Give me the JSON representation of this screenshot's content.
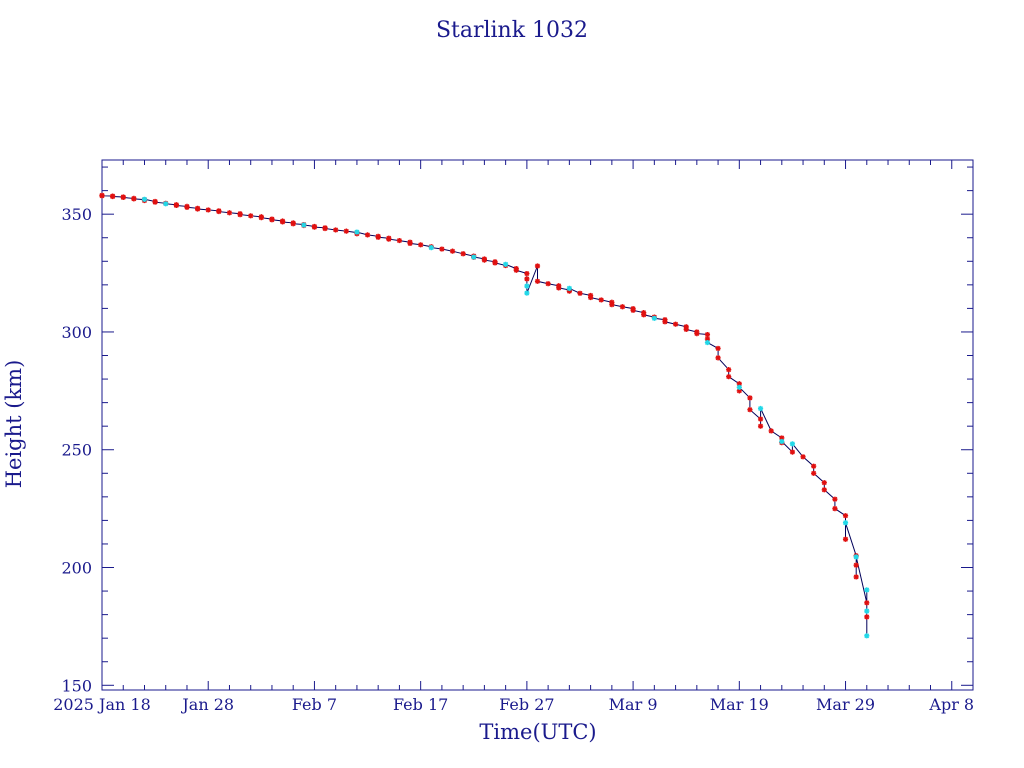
{
  "chart_data": {
    "type": "scatter",
    "title": "Starlink 1032",
    "xlabel": "Time(UTC)",
    "ylabel": "Height (km)",
    "x_tick_labels": [
      "2025 Jan 18",
      "Jan 28",
      "Feb  7",
      "Feb 17",
      "Feb 27",
      "Mar  9",
      "Mar 19",
      "Mar 29",
      "Apr  8"
    ],
    "x_tick_dates": [
      "2025-01-18",
      "2025-01-28",
      "2025-02-07",
      "2025-02-17",
      "2025-02-27",
      "2025-03-09",
      "2025-03-19",
      "2025-03-29",
      "2025-04-08"
    ],
    "xlim": [
      "2025-01-18",
      "2025-04-10"
    ],
    "y_tick_labels": [
      "150",
      "200",
      "250",
      "300",
      "350"
    ],
    "y_ticks": [
      150,
      200,
      250,
      300,
      350
    ],
    "ylim": [
      148,
      373
    ],
    "grid": false,
    "colors": {
      "axes": "#1a1a8c",
      "line": "#00005a",
      "marker_red": "#e01010",
      "marker_cyan": "#22d8e8"
    },
    "series": [
      {
        "marker": "red-star",
        "points": [
          [
            "2025-01-18",
            358
          ],
          [
            "2025-01-18",
            357.8
          ],
          [
            "2025-01-19",
            357.7
          ],
          [
            "2025-01-19",
            357.5
          ],
          [
            "2025-01-20",
            357.3
          ],
          [
            "2025-01-20",
            357.1
          ],
          [
            "2025-01-21",
            356.7
          ],
          [
            "2025-01-21",
            356.5
          ],
          [
            "2025-01-22",
            356.2
          ],
          [
            "2025-01-22",
            355.8
          ],
          [
            "2025-01-23",
            355.4
          ],
          [
            "2025-01-23",
            355.1
          ],
          [
            "2025-01-24",
            354.6
          ],
          [
            "2025-01-25",
            354
          ],
          [
            "2025-01-25",
            353.7
          ],
          [
            "2025-01-26",
            353.3
          ],
          [
            "2025-01-26",
            352.9
          ],
          [
            "2025-01-27",
            352.5
          ],
          [
            "2025-01-27",
            352.2
          ],
          [
            "2025-01-28",
            351.8
          ],
          [
            "2025-01-29",
            351.4
          ],
          [
            "2025-01-29",
            351.1
          ],
          [
            "2025-01-30",
            350.6
          ],
          [
            "2025-01-31",
            350.2
          ],
          [
            "2025-01-31",
            349.8
          ],
          [
            "2025-02-01",
            349.3
          ],
          [
            "2025-02-02",
            348.9
          ],
          [
            "2025-02-02",
            348.5
          ],
          [
            "2025-02-03",
            347.9
          ],
          [
            "2025-02-03",
            347.6
          ],
          [
            "2025-02-04",
            347.1
          ],
          [
            "2025-02-04",
            346.7
          ],
          [
            "2025-02-05",
            346.3
          ],
          [
            "2025-02-05",
            345.9
          ],
          [
            "2025-02-06",
            345.6
          ],
          [
            "2025-02-06",
            345.2
          ],
          [
            "2025-02-07",
            344.8
          ],
          [
            "2025-02-07",
            344.5
          ],
          [
            "2025-02-08",
            344.2
          ],
          [
            "2025-02-08",
            343.9
          ],
          [
            "2025-02-09",
            343.3
          ],
          [
            "2025-02-10",
            342.8
          ],
          [
            "2025-02-11",
            342.2
          ],
          [
            "2025-02-11",
            341.7
          ],
          [
            "2025-02-12",
            341.2
          ],
          [
            "2025-02-13",
            340.6
          ],
          [
            "2025-02-13",
            340.2
          ],
          [
            "2025-02-14",
            339.8
          ],
          [
            "2025-02-14",
            339.4
          ],
          [
            "2025-02-15",
            338.8
          ],
          [
            "2025-02-16",
            338.1
          ],
          [
            "2025-02-16",
            337.6
          ],
          [
            "2025-02-17",
            337
          ],
          [
            "2025-02-18",
            336.2
          ],
          [
            "2025-02-19",
            335.2
          ],
          [
            "2025-02-20",
            334.3
          ],
          [
            "2025-02-21",
            333.2
          ],
          [
            "2025-02-22",
            332.2
          ],
          [
            "2025-02-22",
            331.7
          ],
          [
            "2025-02-23",
            331
          ],
          [
            "2025-02-23",
            330.5
          ],
          [
            "2025-02-24",
            329.8
          ],
          [
            "2025-02-24",
            329.3
          ],
          [
            "2025-02-25",
            328.2
          ],
          [
            "2025-02-26",
            326.9
          ],
          [
            "2025-02-26",
            326.2
          ],
          [
            "2025-02-27",
            324.8
          ],
          [
            "2025-02-27",
            322.5
          ],
          [
            "2025-02-28",
            328
          ],
          [
            "2025-02-28",
            321.5
          ],
          [
            "2025-03-01",
            320.5
          ],
          [
            "2025-03-02",
            319.6
          ],
          [
            "2025-03-02",
            318.7
          ],
          [
            "2025-03-03",
            317.8
          ],
          [
            "2025-03-03",
            317.3
          ],
          [
            "2025-03-04",
            316.4
          ],
          [
            "2025-03-05",
            315.5
          ],
          [
            "2025-03-05",
            314.6
          ],
          [
            "2025-03-06",
            313.6
          ],
          [
            "2025-03-07",
            312.6
          ],
          [
            "2025-03-07",
            311.6
          ],
          [
            "2025-03-08",
            310.7
          ],
          [
            "2025-03-09",
            309.9
          ],
          [
            "2025-03-09",
            309.2
          ],
          [
            "2025-03-10",
            308.2
          ],
          [
            "2025-03-10",
            307.3
          ],
          [
            "2025-03-11",
            306.3
          ],
          [
            "2025-03-12",
            305.2
          ],
          [
            "2025-03-12",
            304.3
          ],
          [
            "2025-03-13",
            303.3
          ],
          [
            "2025-03-14",
            302.2
          ],
          [
            "2025-03-14",
            301.1
          ],
          [
            "2025-03-15",
            300
          ],
          [
            "2025-03-15",
            299.3
          ],
          [
            "2025-03-16",
            298.9
          ],
          [
            "2025-03-16",
            297
          ],
          [
            "2025-03-17",
            293
          ],
          [
            "2025-03-17",
            289
          ],
          [
            "2025-03-18",
            284
          ],
          [
            "2025-03-18",
            281
          ],
          [
            "2025-03-19",
            278
          ],
          [
            "2025-03-19",
            275
          ],
          [
            "2025-03-20",
            272
          ],
          [
            "2025-03-20",
            267
          ],
          [
            "2025-03-21",
            263
          ],
          [
            "2025-03-21",
            260
          ],
          [
            "2025-03-22",
            258
          ],
          [
            "2025-03-23",
            255
          ],
          [
            "2025-03-23",
            253
          ],
          [
            "2025-03-24",
            249
          ],
          [
            "2025-03-25",
            247
          ],
          [
            "2025-03-26",
            243
          ],
          [
            "2025-03-26",
            240
          ],
          [
            "2025-03-27",
            236
          ],
          [
            "2025-03-27",
            233
          ],
          [
            "2025-03-28",
            229
          ],
          [
            "2025-03-28",
            225
          ],
          [
            "2025-03-29",
            222
          ],
          [
            "2025-03-29",
            212
          ],
          [
            "2025-03-30",
            205
          ],
          [
            "2025-03-30",
            201
          ],
          [
            "2025-03-30",
            196
          ],
          [
            "2025-03-31",
            185
          ],
          [
            "2025-03-31",
            179
          ]
        ]
      },
      {
        "marker": "cyan-star",
        "points": [
          [
            "2025-01-22",
            356.3
          ],
          [
            "2025-01-24",
            354.4
          ],
          [
            "2025-02-06",
            345.4
          ],
          [
            "2025-02-11",
            342.4
          ],
          [
            "2025-02-18",
            335.8
          ],
          [
            "2025-02-22",
            331.8
          ],
          [
            "2025-02-25",
            328.7
          ],
          [
            "2025-02-27",
            319.5
          ],
          [
            "2025-02-27",
            316.5
          ],
          [
            "2025-03-03",
            318.5
          ],
          [
            "2025-03-11",
            305.8
          ],
          [
            "2025-03-16",
            295.5
          ],
          [
            "2025-03-19",
            276.5
          ],
          [
            "2025-03-21",
            267.5
          ],
          [
            "2025-03-23",
            253.5
          ],
          [
            "2025-03-24",
            252.5
          ],
          [
            "2025-03-29",
            219
          ],
          [
            "2025-03-30",
            204.5
          ],
          [
            "2025-03-31",
            190.5
          ],
          [
            "2025-03-31",
            181.5
          ],
          [
            "2025-03-31",
            171
          ]
        ]
      }
    ]
  }
}
